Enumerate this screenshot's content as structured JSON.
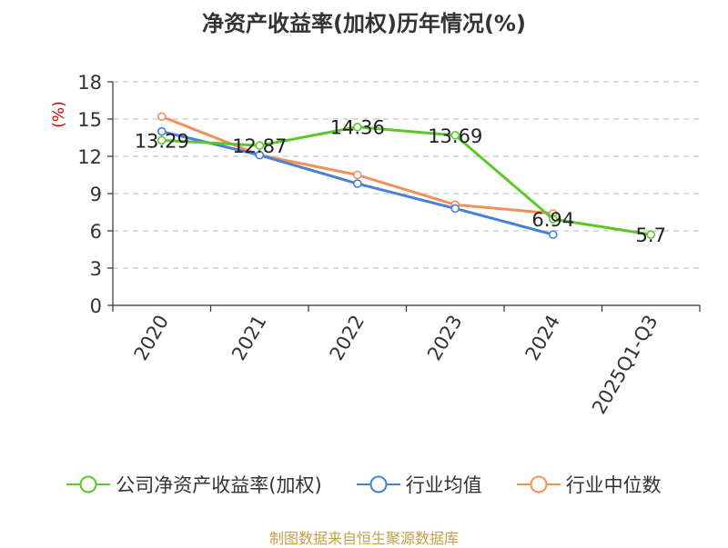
{
  "chart_data": {
    "type": "line",
    "title": "净资产收益率(加权)历年情况(%)",
    "ylabel": "(%)",
    "xlabel": "",
    "ylim": [
      0,
      18
    ],
    "yticks": [
      0,
      3,
      6,
      9,
      12,
      15,
      18
    ],
    "grid": true,
    "categories": [
      "2020",
      "2021",
      "2022",
      "2023",
      "2024",
      "2025Q1-Q3"
    ],
    "series": [
      {
        "name": "公司净资产收益率(加权)",
        "color": "#5cc72a",
        "values": [
          13.29,
          12.87,
          14.36,
          13.69,
          6.94,
          5.7
        ],
        "labels": [
          "13.29",
          "12.87",
          "14.36",
          "13.69",
          "6.94",
          "5.7"
        ]
      },
      {
        "name": "行业均值",
        "color": "#4a7fd6",
        "values": [
          14.0,
          12.1,
          9.8,
          7.8,
          5.7,
          null
        ]
      },
      {
        "name": "行业中位数",
        "color": "#f3905a",
        "values": [
          15.2,
          12.1,
          10.5,
          8.1,
          7.4,
          null
        ]
      }
    ],
    "legend_position": "bottom"
  },
  "source": "制图数据来自恒生聚源数据库"
}
